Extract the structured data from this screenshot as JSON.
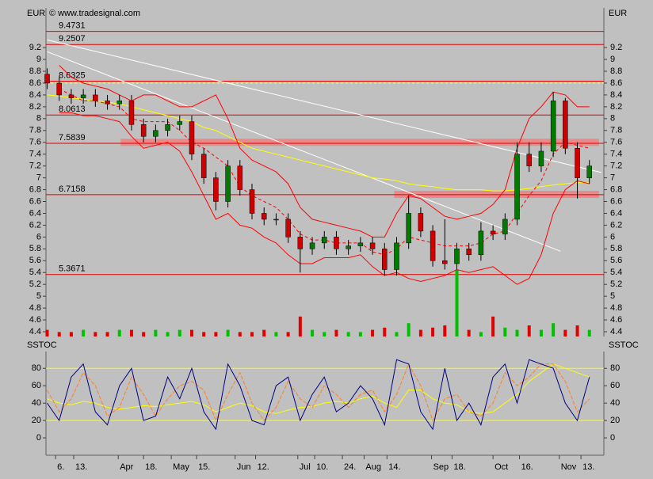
{
  "chart_data": [
    {
      "type": "candlestick",
      "axis_label": "EUR",
      "copyright": "© www.tradesignal.com",
      "x": [
        0,
        1,
        2,
        3,
        4,
        5,
        6,
        7,
        8,
        9,
        10,
        11,
        12,
        13,
        14,
        15,
        16,
        17,
        18,
        19,
        20,
        21,
        22,
        23,
        24,
        25,
        26,
        27,
        28,
        29,
        30,
        31,
        32,
        33,
        34,
        35,
        36,
        37,
        38,
        39,
        40,
        41,
        42,
        43,
        44,
        45
      ],
      "open": [
        8.75,
        8.6,
        8.4,
        8.35,
        8.4,
        8.3,
        8.25,
        8.3,
        7.9,
        7.7,
        7.8,
        7.9,
        7.95,
        7.4,
        7.0,
        6.6,
        7.2,
        6.8,
        6.4,
        6.3,
        6.3,
        6.0,
        5.8,
        5.9,
        6.0,
        5.8,
        5.85,
        5.9,
        5.8,
        5.45,
        5.9,
        6.4,
        6.1,
        5.6,
        5.55,
        5.8,
        5.7,
        6.1,
        6.05,
        6.3,
        7.4,
        7.2,
        7.45,
        8.3,
        7.5,
        7.0
      ],
      "high": [
        8.85,
        8.7,
        8.5,
        8.5,
        8.5,
        8.4,
        8.4,
        8.4,
        8.0,
        7.9,
        8.0,
        8.05,
        8.05,
        7.5,
        7.1,
        7.3,
        7.3,
        6.9,
        6.5,
        6.4,
        6.4,
        6.1,
        6.0,
        6.1,
        6.1,
        5.95,
        6.0,
        6.0,
        5.9,
        6.0,
        6.7,
        6.5,
        6.2,
        6.3,
        5.9,
        5.9,
        6.25,
        6.2,
        6.4,
        7.6,
        7.6,
        7.6,
        8.45,
        8.35,
        7.6,
        7.3
      ],
      "low": [
        8.5,
        8.3,
        8.25,
        8.25,
        8.2,
        8.15,
        8.15,
        7.8,
        7.6,
        7.6,
        7.7,
        7.8,
        7.3,
        6.9,
        6.45,
        6.5,
        6.7,
        6.3,
        6.2,
        6.2,
        5.9,
        5.4,
        5.7,
        5.8,
        5.7,
        5.7,
        5.75,
        5.7,
        5.35,
        5.35,
        5.8,
        6.0,
        5.5,
        5.45,
        5.45,
        5.6,
        5.6,
        5.95,
        5.95,
        6.2,
        7.1,
        7.1,
        7.35,
        7.4,
        6.65,
        6.9
      ],
      "close": [
        8.6,
        8.4,
        8.35,
        8.4,
        8.3,
        8.25,
        8.3,
        7.9,
        7.7,
        7.8,
        7.9,
        7.95,
        7.4,
        7.0,
        6.6,
        7.2,
        6.8,
        6.4,
        6.3,
        6.3,
        6.0,
        5.8,
        5.9,
        6.0,
        5.8,
        5.85,
        5.9,
        5.8,
        5.45,
        5.9,
        6.4,
        6.1,
        5.6,
        5.55,
        5.8,
        5.7,
        6.1,
        6.05,
        6.3,
        7.4,
        7.2,
        7.45,
        8.3,
        7.5,
        7.0,
        7.2
      ],
      "up_color": "#007a00",
      "down_color": "#d00000",
      "volume": [
        3,
        2,
        2,
        3,
        2,
        2,
        3,
        3,
        2,
        3,
        2,
        3,
        3,
        2,
        2,
        3,
        2,
        2,
        3,
        2,
        2,
        9,
        3,
        2,
        3,
        2,
        2,
        3,
        4,
        2,
        6,
        3,
        4,
        5,
        30,
        3,
        2,
        9,
        4,
        3,
        5,
        3,
        6,
        3,
        5,
        3
      ],
      "bands": {
        "color": "#ff0000",
        "upper": [
          null,
          8.9,
          8.7,
          8.6,
          8.55,
          8.5,
          8.4,
          8.3,
          8.4,
          8.4,
          8.3,
          8.2,
          8.2,
          8.3,
          8.4,
          8.0,
          7.5,
          7.3,
          7.2,
          7.1,
          6.9,
          6.5,
          6.3,
          6.25,
          6.2,
          6.15,
          6.1,
          6.0,
          6.0,
          6.4,
          6.7,
          6.65,
          6.5,
          6.35,
          6.3,
          6.35,
          6.4,
          6.55,
          6.8,
          7.5,
          8.0,
          8.2,
          8.45,
          8.4,
          8.2,
          8.2
        ],
        "middle": [
          null,
          8.5,
          8.4,
          8.3,
          8.3,
          8.25,
          8.2,
          8.0,
          7.95,
          7.95,
          7.95,
          7.8,
          7.6,
          7.5,
          7.35,
          7.2,
          6.85,
          6.7,
          6.6,
          6.5,
          6.3,
          6.05,
          5.95,
          5.95,
          5.9,
          5.9,
          5.9,
          5.75,
          5.7,
          5.8,
          6.0,
          5.95,
          5.9,
          5.85,
          5.85,
          5.85,
          5.9,
          6.05,
          6.1,
          6.4,
          6.7,
          6.95,
          7.4,
          7.6,
          7.55,
          7.5
        ],
        "lower": [
          null,
          8.1,
          8.1,
          8.05,
          8.05,
          8.0,
          7.95,
          7.7,
          7.5,
          7.55,
          7.6,
          7.45,
          7.1,
          6.7,
          6.3,
          6.4,
          6.2,
          6.15,
          6.0,
          5.9,
          5.7,
          5.55,
          5.55,
          5.65,
          5.65,
          5.65,
          5.7,
          5.5,
          5.35,
          5.4,
          5.3,
          5.25,
          5.3,
          5.35,
          5.45,
          5.4,
          5.45,
          5.5,
          5.35,
          5.2,
          5.3,
          5.7,
          6.4,
          6.8,
          6.95,
          6.9
        ]
      },
      "ma": {
        "color": "#ffff00",
        "values": [
          8.4,
          8.38,
          8.35,
          8.33,
          8.3,
          8.28,
          8.25,
          8.2,
          8.15,
          8.1,
          8.05,
          8.0,
          7.95,
          7.85,
          7.8,
          7.7,
          7.6,
          7.5,
          7.45,
          7.4,
          7.35,
          7.3,
          7.25,
          7.2,
          7.15,
          7.1,
          7.05,
          7.0,
          6.98,
          6.95,
          6.9,
          6.87,
          6.85,
          6.82,
          6.8,
          6.8,
          6.8,
          6.78,
          6.78,
          6.8,
          6.82,
          6.85,
          6.88,
          6.9,
          6.92,
          6.92
        ]
      },
      "levels": [
        9.4731,
        9.2507,
        8.6325,
        8.0613,
        7.5839,
        6.7158,
        5.3671
      ],
      "level_color": "#e00000",
      "ref_line": 8.6,
      "ref_color": "#ffff60",
      "zones": [
        {
          "from": 6.1,
          "to": 45.8,
          "low": 7.54,
          "high": 7.66
        },
        {
          "from": 28.8,
          "to": 45.8,
          "low": 6.66,
          "high": 6.78
        }
      ],
      "zone_color": "#f08080",
      "trendlines": [
        {
          "x": [
            0,
            46
          ],
          "y": [
            9.33,
            7.09
          ]
        },
        {
          "x": [
            0,
            42.6
          ],
          "y": [
            9.13,
            5.76
          ]
        }
      ],
      "xlim": [
        -0.1,
        46.2
      ],
      "ylim": [
        4.32,
        9.87
      ],
      "yticks": [
        4.4,
        4.6,
        4.8,
        5,
        5.2,
        5.4,
        5.6,
        5.8,
        6,
        6.2,
        6.4,
        6.6,
        6.8,
        7,
        7.2,
        7.4,
        7.6,
        7.8,
        8,
        8.2,
        8.4,
        8.6,
        8.8,
        9,
        9.2
      ]
    },
    {
      "type": "line",
      "axis_label": "SSTOC",
      "x": [
        0,
        1,
        2,
        3,
        4,
        5,
        6,
        7,
        8,
        9,
        10,
        11,
        12,
        13,
        14,
        15,
        16,
        17,
        18,
        19,
        20,
        21,
        22,
        23,
        24,
        25,
        26,
        27,
        28,
        29,
        30,
        31,
        32,
        33,
        34,
        35,
        36,
        37,
        38,
        39,
        40,
        41,
        42,
        43,
        44,
        45
      ],
      "series": [
        {
          "color": "#ffff00",
          "values": [
            45,
            40,
            38,
            42,
            40,
            35,
            33,
            35,
            37,
            36,
            38,
            40,
            42,
            38,
            30,
            35,
            40,
            37,
            30,
            28,
            32,
            35,
            36,
            40,
            42,
            40,
            45,
            48,
            40,
            35,
            55,
            55,
            45,
            40,
            38,
            30,
            28,
            30,
            40,
            50,
            65,
            75,
            85,
            80,
            75,
            70
          ]
        },
        {
          "color": "#ff7f20",
          "values": [
            55,
            30,
            45,
            75,
            60,
            25,
            35,
            70,
            50,
            25,
            45,
            60,
            65,
            55,
            20,
            50,
            75,
            40,
            20,
            35,
            65,
            45,
            35,
            60,
            50,
            35,
            50,
            55,
            30,
            50,
            85,
            60,
            20,
            45,
            50,
            30,
            25,
            40,
            75,
            60,
            70,
            85,
            85,
            65,
            30,
            45
          ]
        },
        {
          "color": "#000080",
          "values": [
            40,
            20,
            70,
            85,
            30,
            15,
            60,
            80,
            20,
            25,
            70,
            45,
            80,
            30,
            10,
            85,
            60,
            20,
            15,
            60,
            70,
            20,
            50,
            70,
            30,
            40,
            60,
            45,
            15,
            90,
            85,
            30,
            10,
            80,
            20,
            40,
            15,
            70,
            85,
            40,
            90,
            85,
            80,
            40,
            20,
            70
          ]
        }
      ],
      "levels": [
        80,
        20
      ],
      "level_color": "#ffff00",
      "xlim": [
        -0.1,
        46.2
      ],
      "ylim": [
        -20,
        103
      ],
      "yticks": [
        0,
        20,
        40,
        60,
        80
      ],
      "xticks": [
        {
          "value": 0.7,
          "label": "6."
        },
        {
          "value": 2.2,
          "label": "13."
        },
        {
          "value": 5.9,
          "label": "Apr"
        },
        {
          "value": 8.0,
          "label": "18."
        },
        {
          "value": 10.3,
          "label": "May"
        },
        {
          "value": 12.4,
          "label": "15."
        },
        {
          "value": 15.6,
          "label": "Jun"
        },
        {
          "value": 17.3,
          "label": "12."
        },
        {
          "value": 20.8,
          "label": "Jul"
        },
        {
          "value": 22.2,
          "label": "10."
        },
        {
          "value": 24.5,
          "label": "24."
        },
        {
          "value": 26.3,
          "label": "Aug"
        },
        {
          "value": 28.2,
          "label": "14."
        },
        {
          "value": 31.9,
          "label": "Sep"
        },
        {
          "value": 33.6,
          "label": "18."
        },
        {
          "value": 37.0,
          "label": "Oct"
        },
        {
          "value": 39.2,
          "label": "16."
        },
        {
          "value": 42.5,
          "label": "Nov"
        },
        {
          "value": 44.3,
          "label": "13."
        }
      ]
    }
  ]
}
